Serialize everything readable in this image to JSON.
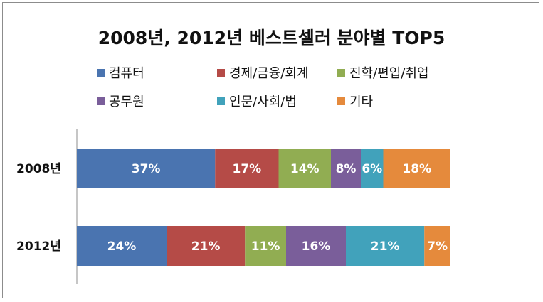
{
  "chart_data": {
    "type": "bar",
    "stacked": true,
    "orientation": "horizontal",
    "percent": true,
    "title": "2008년, 2012년 베스트셀러 분야별 TOP5",
    "categories": [
      "2008년",
      "2012년"
    ],
    "legend_position": "top",
    "series": [
      {
        "name": "컴퓨터",
        "color": "#4a74b0",
        "values": [
          37,
          24
        ],
        "labels": [
          "37%",
          "24%"
        ]
      },
      {
        "name": "경제/금융/회계",
        "color": "#b54b47",
        "values": [
          17,
          21
        ],
        "labels": [
          "17%",
          "21%"
        ]
      },
      {
        "name": "진학/편입/취업",
        "color": "#91ad52",
        "values": [
          14,
          11
        ],
        "labels": [
          "14%",
          "11%"
        ]
      },
      {
        "name": "공무원",
        "color": "#7a5e9a",
        "values": [
          8,
          16
        ],
        "labels": [
          "8%",
          "16%"
        ]
      },
      {
        "name": "인문/사회/법",
        "color": "#41a2bb",
        "values": [
          6,
          21
        ],
        "labels": [
          "6%",
          "21%"
        ]
      },
      {
        "name": "기타",
        "color": "#e58a3c",
        "values": [
          18,
          7
        ],
        "labels": [
          "18%",
          "7%"
        ]
      }
    ]
  }
}
